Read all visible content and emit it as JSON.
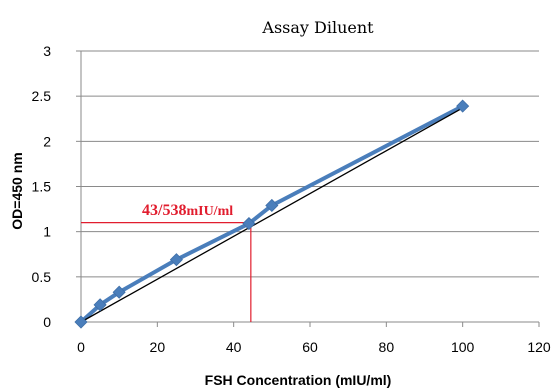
{
  "chart_data": {
    "type": "scatter",
    "title": "Assay Diluent",
    "xlabel": "FSH Concentration (mIU/ml)",
    "ylabel": "OD=450 nm",
    "xlim": [
      0,
      120
    ],
    "ylim": [
      0,
      3
    ],
    "x_ticks": [
      0,
      20,
      40,
      60,
      80,
      100,
      120
    ],
    "y_ticks": [
      0,
      0.5,
      1,
      1.5,
      2,
      2.5,
      3
    ],
    "x_tick_labels": [
      "0",
      "20",
      "40",
      "60",
      "80",
      "100",
      "120"
    ],
    "y_tick_labels": [
      "0",
      "0.5",
      "1",
      "1.5",
      "2",
      "2.5",
      "3"
    ],
    "grid": "horizontal",
    "series": [
      {
        "x": [
          0,
          5,
          10,
          25,
          44,
          50,
          100
        ],
        "y": [
          0.0,
          0.19,
          0.33,
          0.69,
          1.09,
          1.29,
          2.39
        ],
        "color": "#4a7ebb",
        "marker": "diamond",
        "line": true
      }
    ],
    "trendline": {
      "x": [
        0,
        100
      ],
      "y": [
        0.0,
        2.37
      ],
      "color": "#000000"
    },
    "annotation": {
      "value": "43/538",
      "unit": "mIU/ml",
      "x": 44.5,
      "y": 1.1,
      "color": "#e11d2e"
    }
  }
}
